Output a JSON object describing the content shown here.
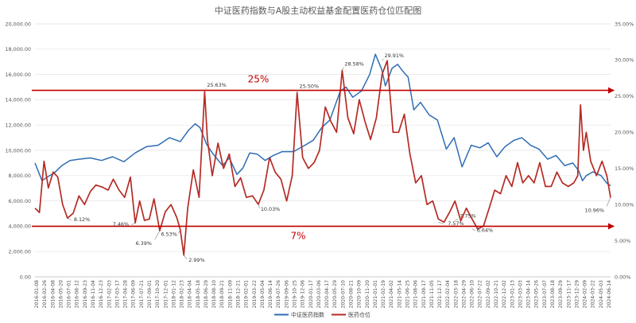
{
  "chart_data": {
    "type": "line",
    "title": "中证医药指数与A股主动权益基金配置医药仓位匹配图",
    "y_left": {
      "min": 0,
      "max": 20000,
      "step": 2000,
      "tick_labels": [
        "0.00",
        "2,000.00",
        "4,000.00",
        "6,000.00",
        "8,000.00",
        "10,000.00",
        "12,000.00",
        "14,000.00",
        "16,000.00",
        "18,000.00",
        "20,000.00"
      ]
    },
    "y_right": {
      "min": 0,
      "max": 35,
      "step": 5,
      "tick_labels": [
        "0.00%",
        "5.00%",
        "10.00%",
        "15.00%",
        "20.00%",
        "25.00%",
        "30.00%",
        "35.00%"
      ]
    },
    "x_range": [
      "2016-01-08",
      "2024-07-05"
    ],
    "x_tick_labels": [
      "2016-01-08",
      "2016-02-26",
      "2016-04-08",
      "2016-05-20",
      "2016-07-01",
      "2016-08-12",
      "2016-09-23",
      "2016-11-04",
      "2016-12-23",
      "2017-02-03",
      "2017-03-17",
      "2017-04-28",
      "2017-06-09",
      "2017-07-21",
      "2017-09-01",
      "2017-10-20",
      "2017-12-01",
      "2018-01-12",
      "2018-02-23",
      "2018-04-04",
      "2018-05-18",
      "2018-06-29",
      "2018-08-10",
      "2018-09-21",
      "2018-11-09",
      "2018-12-21",
      "2019-02-01",
      "2019-03-22",
      "2019-05-04",
      "2019-06-14",
      "2019-07-26",
      "2019-09-06",
      "2019-10-25",
      "2019-12-06",
      "2020-01-17",
      "2020-03-06",
      "2020-04-17",
      "2020-05-29",
      "2020-07-10",
      "2020-08-21",
      "2020-10-09",
      "2020-11-20",
      "2021-01-01",
      "2021-02-19",
      "2021-04-02",
      "2021-05-14",
      "2021-06-25",
      "2021-08-06",
      "2021-09-17",
      "2021-11-05",
      "2021-12-17",
      "2022-02-04",
      "2022-03-18",
      "2022-04-29",
      "2022-06-10",
      "2022-07-22",
      "2022-09-02",
      "2022-10-21",
      "2022-12-02",
      "2023-01-13",
      "2023-03-03",
      "2023-04-14",
      "2023-05-26",
      "2023-07-07",
      "2023-08-18",
      "2023-09-29",
      "2023-11-17",
      "2023-12-29",
      "2024-02-09",
      "2024-03-22",
      "2024-05-03",
      "2024-06-14"
    ],
    "series": [
      {
        "name": "中证医药指数",
        "axis": "left",
        "color": "#2e6db4",
        "x": [
          "2016-01-08",
          "2016-02-15",
          "2016-03-15",
          "2016-04-20",
          "2016-06-01",
          "2016-07-15",
          "2016-09-01",
          "2016-11-01",
          "2017-01-01",
          "2017-03-01",
          "2017-05-01",
          "2017-07-01",
          "2017-09-01",
          "2017-11-01",
          "2018-01-01",
          "2018-03-01",
          "2018-04-15",
          "2018-05-20",
          "2018-06-15",
          "2018-07-20",
          "2018-08-20",
          "2018-10-15",
          "2018-11-20",
          "2018-12-31",
          "2019-02-01",
          "2019-03-10",
          "2019-04-20",
          "2019-06-01",
          "2019-07-15",
          "2019-09-01",
          "2019-11-01",
          "2020-01-01",
          "2020-02-15",
          "2020-04-01",
          "2020-05-15",
          "2020-07-10",
          "2020-08-10",
          "2020-09-15",
          "2020-11-01",
          "2020-12-15",
          "2021-01-15",
          "2021-02-18",
          "2021-03-10",
          "2021-04-15",
          "2021-05-15",
          "2021-06-15",
          "2021-07-10",
          "2021-08-10",
          "2021-09-15",
          "2021-11-01",
          "2021-12-15",
          "2022-02-01",
          "2022-03-15",
          "2022-04-27",
          "2022-06-15",
          "2022-08-01",
          "2022-09-15",
          "2022-10-31",
          "2022-12-15",
          "2023-02-01",
          "2023-03-15",
          "2023-05-01",
          "2023-06-15",
          "2023-08-01",
          "2023-09-15",
          "2023-11-01",
          "2023-12-15",
          "2024-01-15",
          "2024-02-05",
          "2024-02-25",
          "2024-04-01",
          "2024-05-15",
          "2024-06-15",
          "2024-07-05"
        ],
        "values": [
          9000,
          7600,
          7900,
          8200,
          8800,
          9200,
          9300,
          9400,
          9200,
          9500,
          9100,
          9800,
          10300,
          10400,
          11000,
          10700,
          11600,
          12100,
          11800,
          10500,
          9800,
          8800,
          9400,
          8100,
          8600,
          9800,
          9700,
          9200,
          9600,
          9900,
          9900,
          10400,
          10800,
          11800,
          12400,
          14700,
          15000,
          14200,
          14700,
          16000,
          17600,
          16400,
          15100,
          16500,
          16800,
          16200,
          15800,
          13200,
          13800,
          12800,
          12400,
          10100,
          11000,
          8700,
          10400,
          10200,
          10600,
          9500,
          10300,
          10800,
          11000,
          10400,
          10100,
          9300,
          9600,
          8800,
          9000,
          8400,
          7600,
          8000,
          8300,
          8000,
          7400,
          7200
        ]
      },
      {
        "name": "医药仓位",
        "axis": "right",
        "color": "#b52b25",
        "x": [
          "2016-01-08",
          "2016-02-01",
          "2016-02-26",
          "2016-03-20",
          "2016-04-15",
          "2016-05-10",
          "2016-06-05",
          "2016-07-01",
          "2016-08-01",
          "2016-09-01",
          "2016-10-01",
          "2016-11-01",
          "2016-12-01",
          "2017-01-05",
          "2017-02-05",
          "2017-03-05",
          "2017-04-05",
          "2017-05-05",
          "2017-06-05",
          "2017-07-01",
          "2017-07-25",
          "2017-08-20",
          "2017-09-15",
          "2017-10-10",
          "2017-11-10",
          "2017-12-10",
          "2018-01-10",
          "2018-02-10",
          "2018-03-01",
          "2018-03-20",
          "2018-04-10",
          "2018-05-10",
          "2018-06-10",
          "2018-07-10",
          "2018-07-25",
          "2018-08-20",
          "2018-09-20",
          "2018-10-20",
          "2018-11-20",
          "2018-12-20",
          "2019-01-20",
          "2019-02-20",
          "2019-03-25",
          "2019-04-25",
          "2019-05-25",
          "2019-06-25",
          "2019-07-25",
          "2019-08-25",
          "2019-09-25",
          "2019-10-25",
          "2019-11-20",
          "2019-12-20",
          "2020-01-20",
          "2020-02-20",
          "2020-03-20",
          "2020-04-20",
          "2020-05-20",
          "2020-06-20",
          "2020-07-20",
          "2020-08-20",
          "2020-09-20",
          "2020-10-20",
          "2020-11-20",
          "2020-12-20",
          "2021-01-20",
          "2021-02-20",
          "2021-03-20",
          "2021-04-20",
          "2021-05-20",
          "2021-06-20",
          "2021-07-20",
          "2021-08-20",
          "2021-09-20",
          "2021-10-20",
          "2021-11-20",
          "2021-12-20",
          "2022-01-20",
          "2022-02-20",
          "2022-03-20",
          "2022-04-20",
          "2022-05-20",
          "2022-06-20",
          "2022-07-20",
          "2022-08-20",
          "2022-09-20",
          "2022-10-20",
          "2022-11-20",
          "2022-12-20",
          "2023-01-20",
          "2023-02-20",
          "2023-03-20",
          "2023-04-20",
          "2023-05-20",
          "2023-06-20",
          "2023-07-20",
          "2023-08-20",
          "2023-09-20",
          "2023-10-20",
          "2023-11-20",
          "2023-12-20",
          "2024-01-10",
          "2024-01-25",
          "2024-02-10",
          "2024-02-25",
          "2024-03-20",
          "2024-04-20",
          "2024-05-20",
          "2024-06-15",
          "2024-07-05"
        ],
        "values": [
          9.5,
          8.9,
          16.0,
          12.3,
          14.5,
          13.8,
          10.0,
          8.12,
          8.8,
          11.2,
          10.0,
          11.8,
          12.7,
          12.4,
          12.0,
          13.5,
          12.0,
          11.0,
          13.8,
          7.46,
          10.5,
          7.8,
          8.0,
          10.8,
          6.39,
          9.0,
          10.0,
          8.2,
          6.53,
          2.99,
          9.5,
          14.8,
          11.0,
          25.63,
          19.0,
          14.0,
          18.5,
          15.0,
          17.0,
          12.5,
          13.7,
          11.0,
          11.2,
          10.03,
          12.0,
          16.5,
          14.5,
          13.5,
          10.5,
          14.0,
          25.5,
          16.5,
          15.0,
          15.8,
          17.5,
          23.5,
          21.5,
          20.0,
          28.58,
          22.0,
          19.8,
          24.5,
          21.5,
          19.0,
          22.0,
          28.0,
          29.91,
          20.0,
          20.0,
          22.5,
          17.0,
          13.0,
          14.0,
          10.0,
          10.5,
          8.0,
          7.57,
          9.0,
          10.5,
          7.75,
          9.5,
          8.0,
          6.64,
          7.0,
          9.5,
          12.0,
          11.5,
          14.0,
          12.5,
          15.8,
          13.0,
          14.0,
          13.0,
          15.8,
          12.5,
          12.5,
          14.5,
          13.0,
          12.5,
          13.0,
          14.0,
          23.8,
          17.5,
          20.0,
          16.0,
          14.0,
          16.0,
          14.0,
          10.96
        ]
      }
    ],
    "annotations": [
      {
        "text": "8.12%",
        "x": "2016-07-01",
        "y": 8.12,
        "axis": "right"
      },
      {
        "text": "7.46%",
        "x": "2017-07-01",
        "y": 7.46,
        "axis": "right"
      },
      {
        "text": "6.39%",
        "x": "2017-11-10",
        "y": 6.39,
        "axis": "right"
      },
      {
        "text": "6.53%",
        "x": "2018-03-01",
        "y": 6.53,
        "axis": "right"
      },
      {
        "text": "2.99%",
        "x": "2018-03-20",
        "y": 2.99,
        "axis": "right"
      },
      {
        "text": "25.63%",
        "x": "2018-07-10",
        "y": 25.63,
        "axis": "right"
      },
      {
        "text": "10.03%",
        "x": "2019-04-25",
        "y": 10.03,
        "axis": "right"
      },
      {
        "text": "25.50%",
        "x": "2019-11-20",
        "y": 25.5,
        "axis": "right"
      },
      {
        "text": "28.58%",
        "x": "2020-07-20",
        "y": 28.58,
        "axis": "right"
      },
      {
        "text": "29.91%",
        "x": "2021-02-20",
        "y": 29.91,
        "axis": "right"
      },
      {
        "text": "7.57%",
        "x": "2021-12-20",
        "y": 7.57,
        "axis": "right"
      },
      {
        "text": "7.75%",
        "x": "2022-03-20",
        "y": 7.75,
        "axis": "right"
      },
      {
        "text": "6.64%",
        "x": "2022-06-20",
        "y": 6.64,
        "axis": "right"
      },
      {
        "text": "10.96%",
        "x": "2024-07-05",
        "y": 10.96,
        "axis": "right"
      }
    ],
    "reference_arrows": [
      {
        "label": "25%",
        "y": 25.8,
        "axis": "right",
        "color": "#c00000"
      },
      {
        "label": "7%",
        "y": 7.0,
        "axis": "right",
        "color": "#c00000"
      }
    ],
    "legend": {
      "position": "bottom"
    },
    "grid": true
  }
}
